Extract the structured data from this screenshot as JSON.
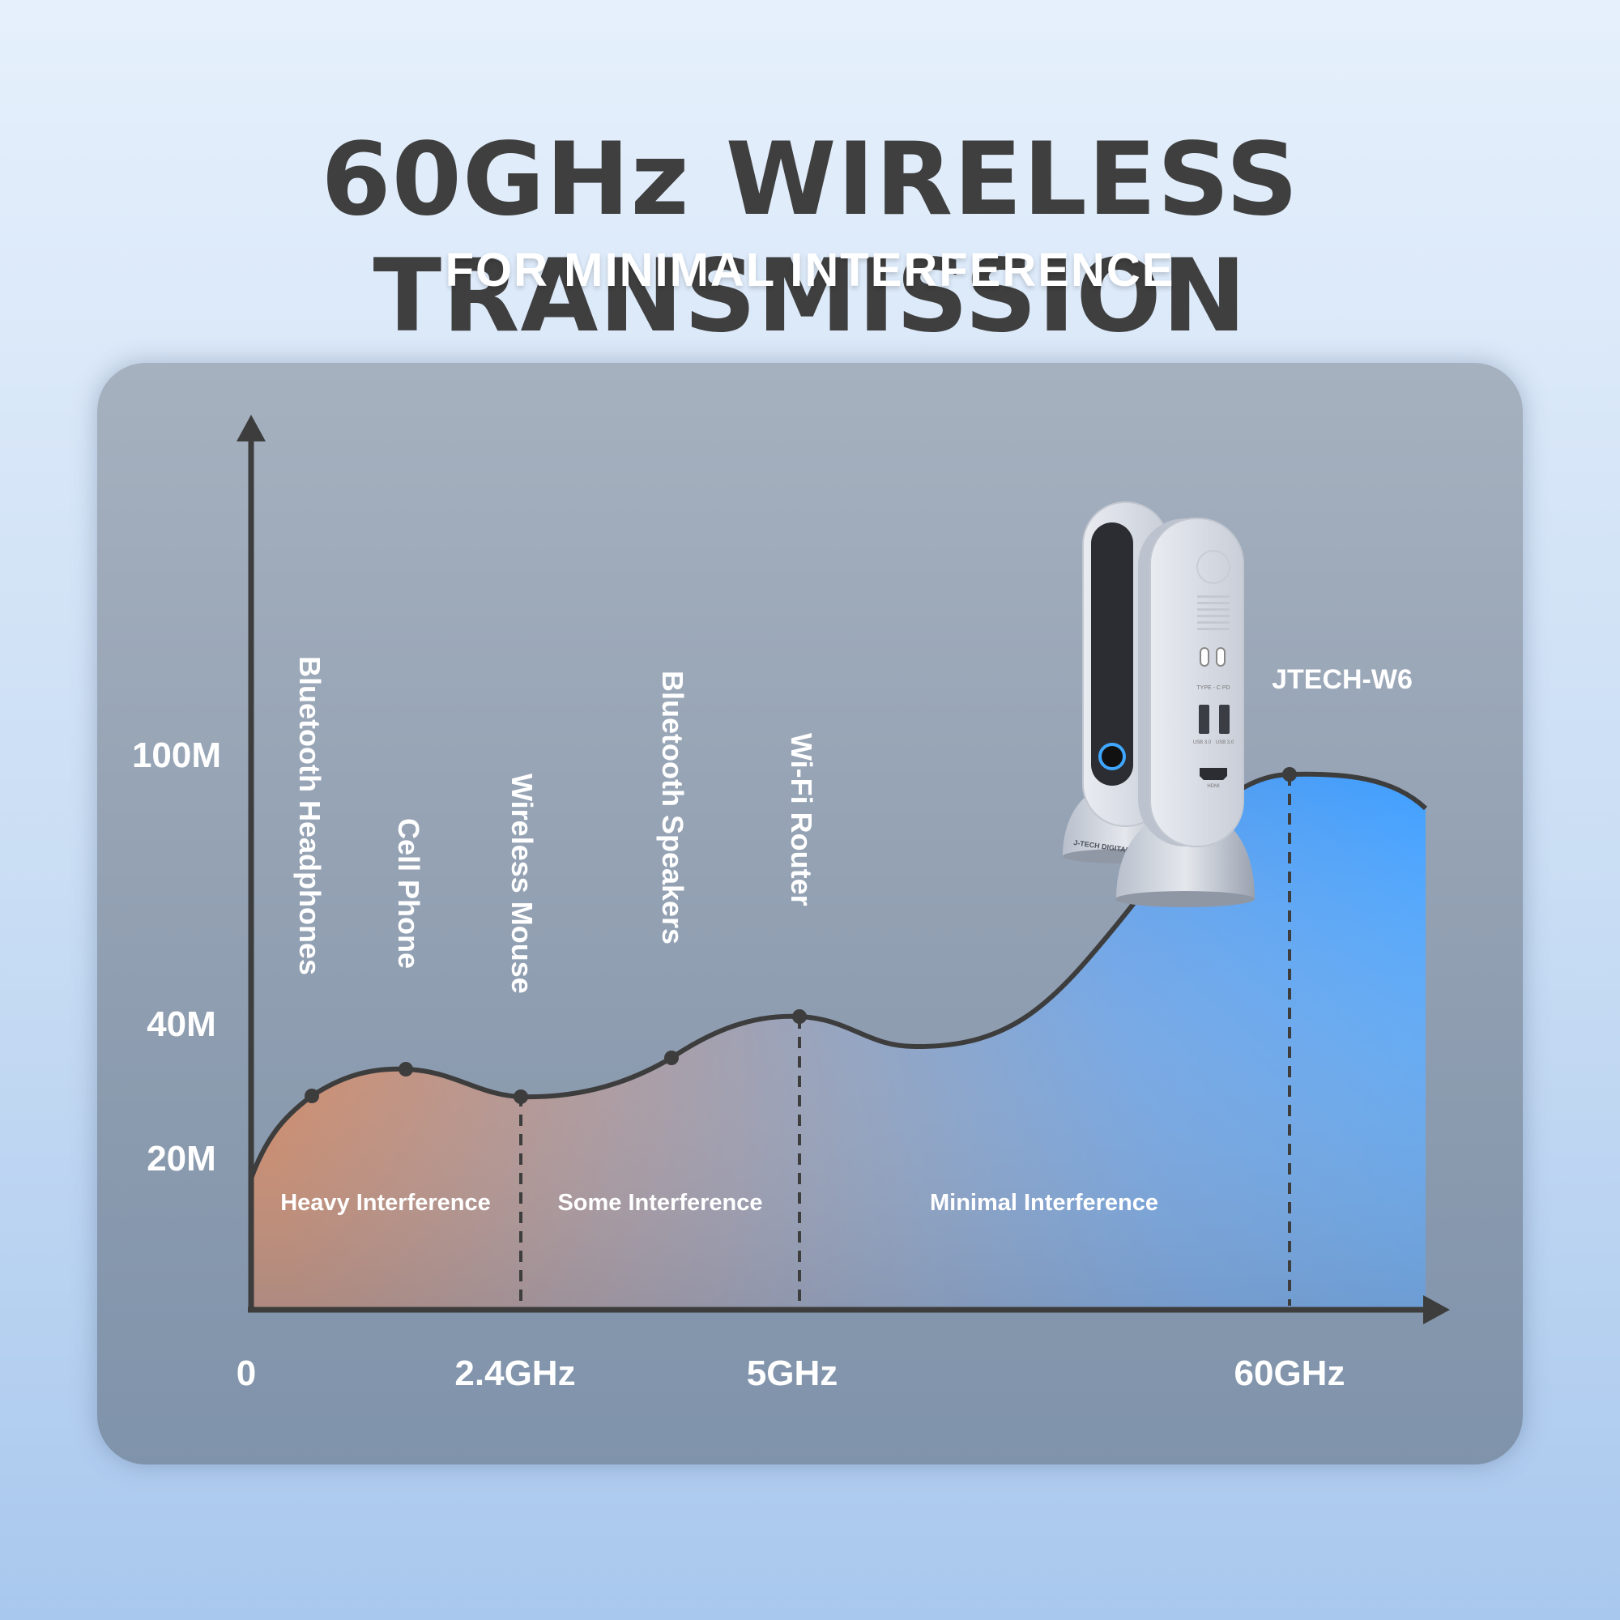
{
  "header": {
    "title": "60GHz WIRELESS TRANSMISSION",
    "subtitle": "FOR MINIMAL INTERFERENCE"
  },
  "chart_data": {
    "type": "area",
    "x": [
      "0",
      "2.4GHz",
      "5GHz",
      "60GHz"
    ],
    "y_ticks": [
      "20M",
      "40M",
      "100M"
    ],
    "devices": [
      "Bluetooth Headphones",
      "Cell Phone",
      "Wireless Mouse",
      "Bluetooth Speakers",
      "Wi-Fi Router"
    ],
    "zones": [
      "Heavy Interference",
      "Some Interference",
      "Minimal Interference"
    ],
    "product_label": "JTECH-W6",
    "colors": {
      "heavy": "#d9753f",
      "some": "#8a93ad",
      "minimal": "#3f9fff",
      "curve": "#3d3d3d"
    }
  },
  "product": {
    "brand_text": "J-TECH DIGITAL",
    "port_labels": [
      "TYPE - C PD",
      "USB 3.0",
      "USB 3.0",
      "HDMI"
    ]
  }
}
